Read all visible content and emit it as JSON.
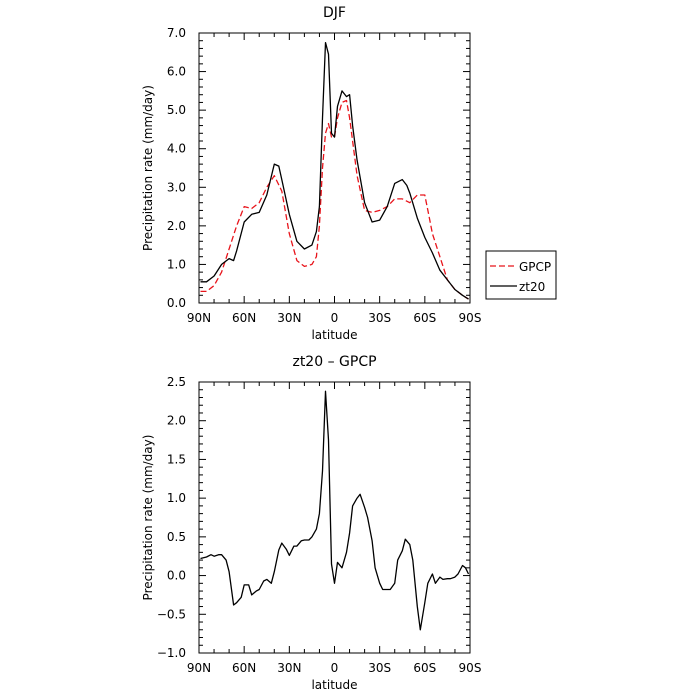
{
  "chart_data": [
    {
      "type": "line",
      "title": "DJF",
      "xlabel": "latitude",
      "ylabel": "Precipitation rate (mm/day)",
      "ylim": [
        0,
        7
      ],
      "yticks": [
        "0.0",
        "1.0",
        "2.0",
        "3.0",
        "4.0",
        "5.0",
        "6.0",
        "7.0"
      ],
      "xlim": [
        90,
        -90
      ],
      "xticks": [
        {
          "value": 90,
          "label": "90N"
        },
        {
          "value": 60,
          "label": "60N"
        },
        {
          "value": 30,
          "label": "30N"
        },
        {
          "value": 0,
          "label": "0"
        },
        {
          "value": -30,
          "label": "30S"
        },
        {
          "value": -60,
          "label": "60S"
        },
        {
          "value": -90,
          "label": "90S"
        }
      ],
      "legend_position": "outside-right",
      "series": [
        {
          "name": "GPCP",
          "color": "#e8141b",
          "dash": "dashed",
          "x": [
            89,
            85,
            80,
            75,
            70,
            65,
            60,
            55,
            50,
            45,
            40,
            35,
            30,
            25,
            20,
            15,
            12,
            10,
            8,
            6,
            4,
            2,
            0,
            -2,
            -5,
            -8,
            -10,
            -12,
            -15,
            -20,
            -25,
            -30,
            -35,
            -40,
            -45,
            -50,
            -55,
            -60,
            -63,
            -65,
            -70,
            -75,
            -80,
            -85,
            -89
          ],
          "values": [
            0.3,
            0.3,
            0.45,
            0.8,
            1.4,
            2.0,
            2.5,
            2.45,
            2.6,
            3.0,
            3.3,
            2.9,
            1.8,
            1.1,
            0.95,
            1.0,
            1.2,
            2.0,
            3.5,
            4.4,
            4.65,
            4.3,
            4.3,
            4.8,
            5.2,
            5.25,
            4.8,
            4.2,
            3.3,
            2.4,
            2.35,
            2.4,
            2.5,
            2.7,
            2.7,
            2.6,
            2.8,
            2.8,
            2.2,
            1.8,
            1.2,
            0.6,
            0.35,
            0.2,
            0.1
          ]
        },
        {
          "name": "zt20",
          "color": "#000000",
          "dash": "solid",
          "x": [
            89,
            85,
            80,
            75,
            70,
            67,
            65,
            60,
            55,
            50,
            45,
            40,
            37,
            35,
            30,
            25,
            20,
            15,
            12,
            10,
            8,
            6,
            4,
            2,
            0,
            -2,
            -5,
            -8,
            -10,
            -12,
            -15,
            -20,
            -25,
            -30,
            -35,
            -40,
            -45,
            -48,
            -50,
            -55,
            -60,
            -65,
            -70,
            -75,
            -80,
            -85,
            -89
          ],
          "values": [
            0.55,
            0.55,
            0.7,
            1.0,
            1.15,
            1.1,
            1.35,
            2.1,
            2.3,
            2.35,
            2.8,
            3.6,
            3.55,
            3.2,
            2.3,
            1.6,
            1.4,
            1.5,
            1.85,
            2.5,
            4.8,
            6.75,
            6.45,
            4.4,
            4.3,
            5.1,
            5.5,
            5.35,
            5.4,
            4.6,
            3.7,
            2.6,
            2.1,
            2.15,
            2.5,
            3.1,
            3.2,
            3.05,
            2.85,
            2.2,
            1.7,
            1.3,
            0.85,
            0.6,
            0.35,
            0.2,
            0.1
          ]
        }
      ]
    },
    {
      "type": "line",
      "title": "zt20 – GPCP",
      "xlabel": "latitude",
      "ylabel": "Precipitation rate (mm/day)",
      "ylim": [
        -1.0,
        2.5
      ],
      "yticks": [
        "−1.0",
        "−0.5",
        "0.0",
        "0.5",
        "1.0",
        "1.5",
        "2.0",
        "2.5"
      ],
      "xlim": [
        90,
        -90
      ],
      "xticks": [
        {
          "value": 90,
          "label": "90N"
        },
        {
          "value": 60,
          "label": "60N"
        },
        {
          "value": 30,
          "label": "30N"
        },
        {
          "value": 0,
          "label": "0"
        },
        {
          "value": -30,
          "label": "30S"
        },
        {
          "value": -60,
          "label": "60S"
        },
        {
          "value": -90,
          "label": "90S"
        }
      ],
      "series": [
        {
          "name": "",
          "color": "#000000",
          "dash": "solid",
          "x": [
            89,
            85,
            82,
            80,
            77,
            75,
            72,
            70,
            67,
            65,
            62,
            60,
            57,
            55,
            52,
            50,
            47,
            45,
            42,
            40,
            37,
            35,
            32,
            30,
            27,
            25,
            22,
            20,
            17,
            15,
            12,
            10,
            8,
            6,
            4,
            2,
            0,
            -2,
            -5,
            -8,
            -10,
            -12,
            -15,
            -17,
            -20,
            -22,
            -25,
            -27,
            -30,
            -32,
            -35,
            -37,
            -40,
            -42,
            -45,
            -47,
            -50,
            -52,
            -55,
            -57,
            -60,
            -62,
            -65,
            -67,
            -70,
            -72,
            -75,
            -77,
            -80,
            -82,
            -85,
            -87,
            -89
          ],
          "values": [
            0.22,
            0.24,
            0.27,
            0.25,
            0.27,
            0.27,
            0.2,
            0.05,
            -0.38,
            -0.35,
            -0.28,
            -0.12,
            -0.12,
            -0.25,
            -0.2,
            -0.18,
            -0.07,
            -0.05,
            -0.1,
            0.05,
            0.33,
            0.42,
            0.34,
            0.26,
            0.38,
            0.38,
            0.45,
            0.46,
            0.46,
            0.5,
            0.6,
            0.8,
            1.35,
            2.38,
            1.75,
            0.15,
            -0.1,
            0.17,
            0.1,
            0.3,
            0.55,
            0.9,
            1.0,
            1.05,
            0.88,
            0.75,
            0.45,
            0.1,
            -0.1,
            -0.18,
            -0.18,
            -0.18,
            -0.1,
            0.2,
            0.32,
            0.47,
            0.4,
            0.2,
            -0.4,
            -0.7,
            -0.35,
            -0.1,
            0.02,
            -0.1,
            -0.02,
            -0.05,
            -0.04,
            -0.04,
            -0.02,
            0.02,
            0.13,
            0.1,
            0.02
          ]
        }
      ]
    }
  ]
}
